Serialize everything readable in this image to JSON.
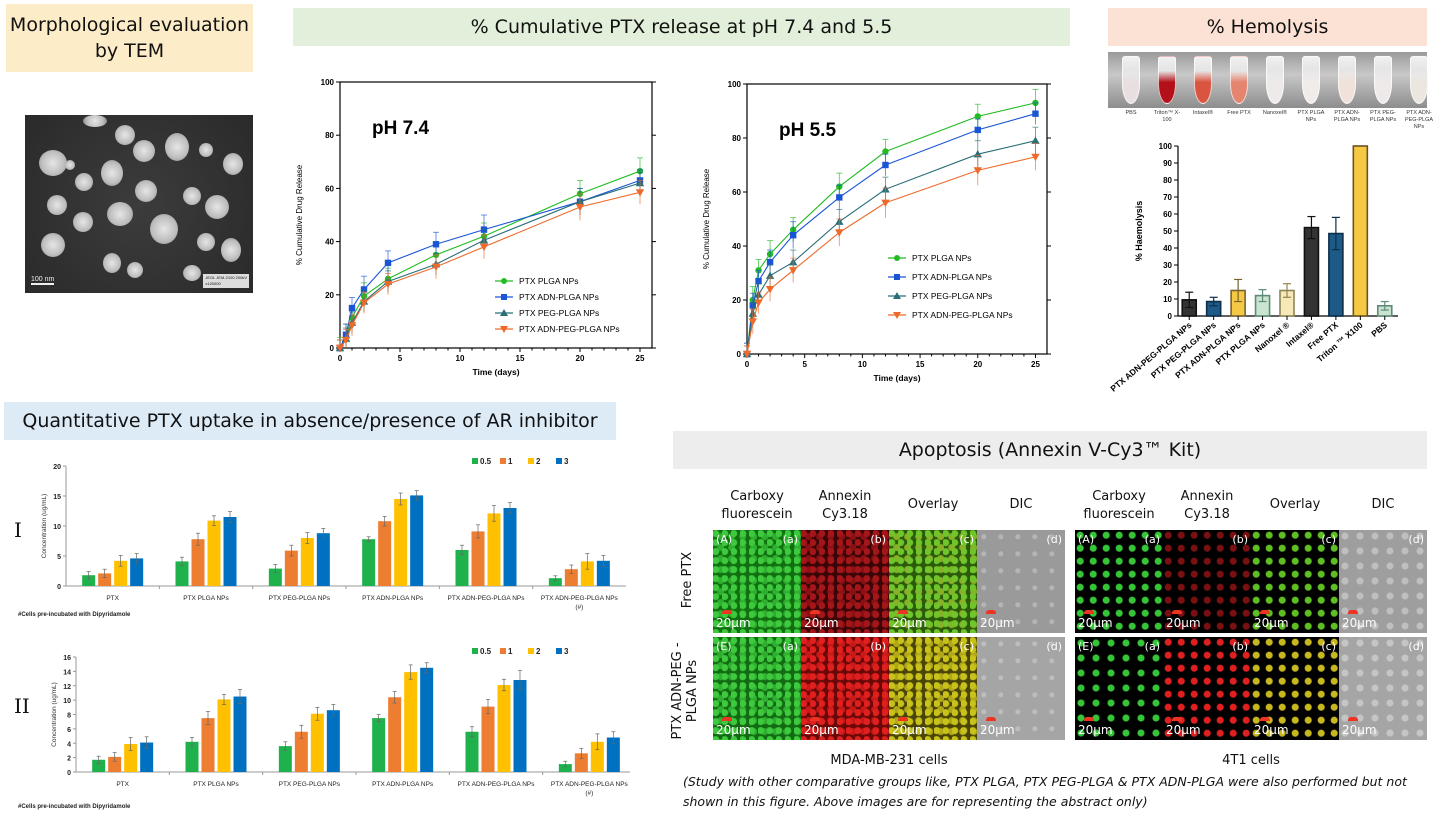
{
  "banners": {
    "tem": "Morphological evaluation by TEM",
    "release": "% Cumulative PTX release at pH 7.4 and 5.5",
    "hemolysis": "% Hemolysis",
    "uptake": "Quantitative PTX uptake in absence/presence of AR inhibitor",
    "apoptosis": "Apoptosis (Annexin V-Cy3™ Kit)"
  },
  "tem": {
    "scale_label": "100 nm",
    "info_line1": "JEOL JEM-2100 200kV",
    "info_line2": "x120000"
  },
  "colors": {
    "green": "#22bb22",
    "blue": "#1a55d6",
    "teal": "#2a6f78",
    "orange": "#ee6a2a",
    "bar_green": "#1fb14b",
    "bar_orange": "#ed7d31",
    "bar_yellow": "#ffc000",
    "bar_blue": "#0070c0"
  },
  "hemolysis_tubes": {
    "labels": [
      "PBS",
      "Triton™ X-100",
      "Intaxel®",
      "Free PTX",
      "Nanoxel®",
      "PTX PLGA NPs",
      "PTX ADN-PLGA NPs",
      "PTX PEG-PLGA NPs",
      "PTX ADN-PEG-PLGA NPs"
    ],
    "tints": [
      "#e8e0e0",
      "#b3101a",
      "#d9553f",
      "#e5846f",
      "#eeeaea",
      "#f0ecea",
      "#f0e2da",
      "#eeeaea",
      "#ece6e0"
    ]
  },
  "chart_data": [
    {
      "id": "release_ph74",
      "type": "line",
      "title": "pH 7.4",
      "xlabel": "Time (days)",
      "ylabel": "% Cumulative Drug Release",
      "xlim": [
        0,
        26
      ],
      "ylim": [
        0,
        100
      ],
      "xticks": [
        0,
        5,
        10,
        15,
        20,
        25
      ],
      "yticks": [
        0,
        20,
        40,
        60,
        80,
        100
      ],
      "legend_position": "bottom-right",
      "x": [
        0,
        0.5,
        1,
        2,
        4,
        8,
        12,
        20,
        25
      ],
      "series": [
        {
          "name": "PTX PLGA NPs",
          "marker": "circle",
          "color": "#22bb22",
          "values": [
            0,
            4,
            11.5,
            19.5,
            26,
            35,
            42,
            58,
            66.5
          ],
          "errors": [
            4,
            5,
            4,
            5,
            4,
            4,
            5,
            5,
            5
          ]
        },
        {
          "name": "PTX ADN-PLGA NPs",
          "marker": "square",
          "color": "#1a55d6",
          "values": [
            0,
            5,
            15,
            22,
            32,
            39,
            44.5,
            55,
            63
          ],
          "errors": [
            3,
            4,
            4,
            5,
            4.5,
            4.5,
            5.5,
            5,
            4
          ]
        },
        {
          "name": "PTX PEG-PLGA NPs",
          "marker": "triangle-up",
          "color": "#2a6f78",
          "values": [
            0,
            3.5,
            9.5,
            17.5,
            25,
            31.5,
            40.5,
            55,
            62
          ],
          "errors": [
            3,
            4,
            4,
            4,
            4,
            4,
            4,
            5,
            4
          ]
        },
        {
          "name": "PTX ADN-PEG-PLGA NPs",
          "marker": "triangle-down",
          "color": "#ee6a2a",
          "values": [
            0,
            3,
            8.5,
            17,
            24,
            30.5,
            38,
            53,
            58.5
          ],
          "errors": [
            3,
            4,
            4,
            4,
            4,
            4.5,
            4.5,
            5,
            4.5
          ]
        }
      ]
    },
    {
      "id": "release_ph55",
      "type": "line",
      "title": "pH 5.5",
      "xlabel": "Time (days)",
      "ylabel": "% Cumulative Drug Release",
      "xlim": [
        0,
        26
      ],
      "ylim": [
        0,
        100
      ],
      "xticks": [
        0,
        5,
        10,
        15,
        20,
        25
      ],
      "yticks": [
        0,
        20,
        40,
        60,
        80,
        100
      ],
      "legend_position": "center-right",
      "x": [
        0,
        0.5,
        1,
        2,
        4,
        8,
        12,
        20,
        25
      ],
      "series": [
        {
          "name": "PTX PLGA NPs",
          "marker": "circle",
          "color": "#22bb22",
          "values": [
            0,
            20,
            31,
            37,
            46,
            62,
            75,
            88,
            93
          ],
          "errors": [
            4,
            5,
            4,
            5,
            4.5,
            5,
            4.5,
            4.5,
            5
          ]
        },
        {
          "name": "PTX ADN-PLGA NPs",
          "marker": "square",
          "color": "#1a55d6",
          "values": [
            0,
            18,
            27,
            34,
            44,
            58,
            70,
            83,
            89
          ],
          "errors": [
            4,
            4.5,
            4,
            4.5,
            5,
            4.5,
            4,
            4,
            4
          ]
        },
        {
          "name": "PTX PEG-PLGA NPs",
          "marker": "triangle-up",
          "color": "#2a6f78",
          "values": [
            0,
            15,
            22,
            29,
            34,
            49,
            61,
            74,
            79
          ],
          "errors": [
            3,
            4,
            4,
            4,
            4.5,
            4.5,
            4.5,
            5,
            5
          ]
        },
        {
          "name": "PTX ADN-PEG-PLGA NPs",
          "marker": "triangle-down",
          "color": "#ee6a2a",
          "values": [
            0,
            12,
            19,
            24,
            31,
            45,
            56,
            68,
            73
          ],
          "errors": [
            3,
            4.5,
            4,
            4.5,
            4.5,
            5,
            5.5,
            5.5,
            5
          ]
        }
      ]
    },
    {
      "id": "hemolysis",
      "type": "bar",
      "title": "",
      "xlabel": "",
      "ylabel": "% Haemolysis",
      "ylim": [
        0,
        100
      ],
      "yticks": [
        0,
        10,
        20,
        30,
        40,
        50,
        60,
        70,
        80,
        90,
        100
      ],
      "categories": [
        "PTX ADN-PEG-PLGA NPs",
        "PTX PEG-PLGA NPs",
        "PTX ADN-PLGA NPs",
        "PTX PLGA NPs",
        "Nanoxel ®",
        "Intaxel®",
        "Free PTX",
        "Triton ™ X100",
        "PBS"
      ],
      "values": [
        9.5,
        8.5,
        15,
        12,
        15,
        52,
        48.5,
        100,
        6
      ],
      "errors": [
        4.5,
        2.5,
        6.5,
        3.5,
        4,
        6.5,
        9.5,
        0,
        2.5
      ],
      "bar_colors": [
        "#333333",
        "#1d5a85",
        "#f6c945",
        "#c9e4d1",
        "#f6e8b8",
        "#333333",
        "#1d5a85",
        "#f6c945",
        "#c9e4d1"
      ],
      "edge_colors": [
        "#111111",
        "#0d2f4a",
        "#7a6230",
        "#5e8a78",
        "#8e8654",
        "#111111",
        "#0d2f4a",
        "#6b5222",
        "#5e8a78"
      ]
    },
    {
      "id": "uptake_I",
      "type": "bar",
      "panel_label": "I",
      "title": "",
      "ylabel": "Concentration (ug/mL)",
      "ylim": [
        0,
        20
      ],
      "yticks": [
        0,
        5,
        10,
        15,
        20
      ],
      "legend_position": "top-right",
      "footnote": "#Cells pre-incubated with Dipyridamole",
      "categories": [
        "PTX",
        "PTX PLGA NPs",
        "PTX PEG-PLGA NPs",
        "PTX ADN-PLGA NPs",
        "PTX ADN-PEG-PLGA NPs",
        "PTX ADN-PEG-PLGA NPs (#)"
      ],
      "series": [
        {
          "name": "0.5",
          "color": "#1fb14b",
          "values": [
            1.8,
            4.1,
            2.9,
            7.8,
            6.0,
            1.3
          ],
          "errors": [
            0.6,
            0.7,
            0.7,
            0.4,
            0.8,
            0.4
          ]
        },
        {
          "name": "1",
          "color": "#ed7d31",
          "values": [
            2.1,
            7.8,
            5.9,
            10.8,
            9.1,
            2.8
          ],
          "errors": [
            0.7,
            1.0,
            0.9,
            0.8,
            1.1,
            0.7
          ]
        },
        {
          "name": "2",
          "color": "#ffc000",
          "values": [
            4.2,
            10.9,
            8.0,
            14.5,
            12.1,
            4.1
          ],
          "errors": [
            0.9,
            0.8,
            0.9,
            1.0,
            1.3,
            1.3
          ]
        },
        {
          "name": "3",
          "color": "#0070c0",
          "values": [
            4.6,
            11.5,
            8.8,
            15.1,
            13.0,
            4.2
          ],
          "errors": [
            0.8,
            0.9,
            0.8,
            0.8,
            0.9,
            0.9
          ]
        }
      ]
    },
    {
      "id": "uptake_II",
      "type": "bar",
      "panel_label": "II",
      "title": "",
      "ylabel": "Concentration (ug/mL)",
      "ylim": [
        0,
        16
      ],
      "yticks": [
        0,
        2,
        4,
        6,
        8,
        10,
        12,
        14,
        16
      ],
      "legend_position": "top-right",
      "footnote": "#Cells pre-incubated with Dipyridamole",
      "categories": [
        "PTX",
        "PTX PLGA NPs",
        "PTX PEG-PLGA NPs",
        "PTX ADN-PLGA NPs",
        "PTX ADN-PEG-PLGA NPs",
        "PTX ADN-PEG-PLGA NPs (#)"
      ],
      "series": [
        {
          "name": "0.5",
          "color": "#1fb14b",
          "values": [
            1.7,
            4.2,
            3.6,
            7.5,
            5.6,
            1.1
          ],
          "errors": [
            0.5,
            0.6,
            0.6,
            0.5,
            0.7,
            0.4
          ]
        },
        {
          "name": "1",
          "color": "#ed7d31",
          "values": [
            2.1,
            7.5,
            5.6,
            10.4,
            9.1,
            2.6
          ],
          "errors": [
            0.6,
            0.9,
            0.9,
            0.8,
            1.0,
            0.7
          ]
        },
        {
          "name": "2",
          "color": "#ffc000",
          "values": [
            3.9,
            10.1,
            8.1,
            13.9,
            12.1,
            4.2
          ],
          "errors": [
            0.9,
            0.7,
            0.9,
            1.0,
            0.8,
            1.1
          ]
        },
        {
          "name": "3",
          "color": "#0070c0",
          "values": [
            4.1,
            10.5,
            8.6,
            14.5,
            12.8,
            4.8
          ],
          "errors": [
            0.8,
            1.0,
            0.8,
            0.7,
            1.3,
            0.8
          ]
        }
      ]
    }
  ],
  "apoptosis": {
    "column_headers": [
      "Carboxy fluorescein",
      "Annexin Cy3.18",
      "Overlay",
      "DIC"
    ],
    "row_headers": [
      "Free PTX",
      "PTX ADN-PEG -PLGA NPs"
    ],
    "cell_lines": [
      "MDA-MB-231 cells",
      "4T1 cells"
    ],
    "panel_tags_row1": [
      "(A)",
      "(a)",
      "(b)",
      "(c)",
      "(d)"
    ],
    "panel_tags_row2": [
      "(E)",
      "(a)",
      "(b)",
      "(c)",
      "(d)"
    ],
    "scale_label": "20µm",
    "footnote": "(Study with other comparative groups like, PTX PLGA, PTX PEG-PLGA & PTX ADN-PLGA were also performed but not shown in this figure. Above images are for representing the abstract only)"
  }
}
